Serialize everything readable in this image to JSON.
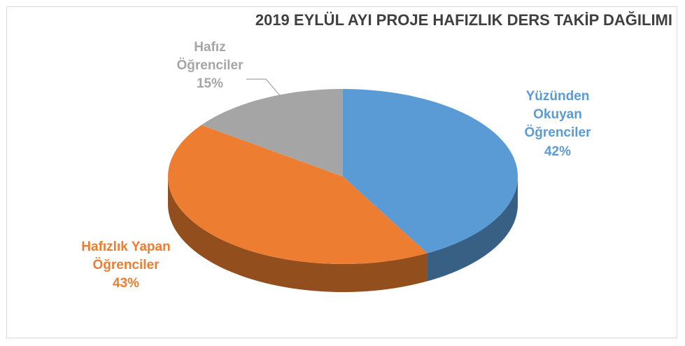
{
  "chart_data": {
    "type": "pie3d",
    "title": "2019 EYLÜL AYI PROJE HAFIZLIK DERS TAKİP DAĞILIMI",
    "categories": [
      "Yüzünden Okuyan Öğrenciler",
      "Hafızlık Yapan Öğrenciler",
      "Hafız Öğrenciler"
    ],
    "values": [
      42,
      43,
      15
    ],
    "value_labels": [
      "42%",
      "43%",
      "15%"
    ],
    "colors": [
      "#5b9bd5",
      "#ed7d31",
      "#a5a5a5"
    ]
  }
}
